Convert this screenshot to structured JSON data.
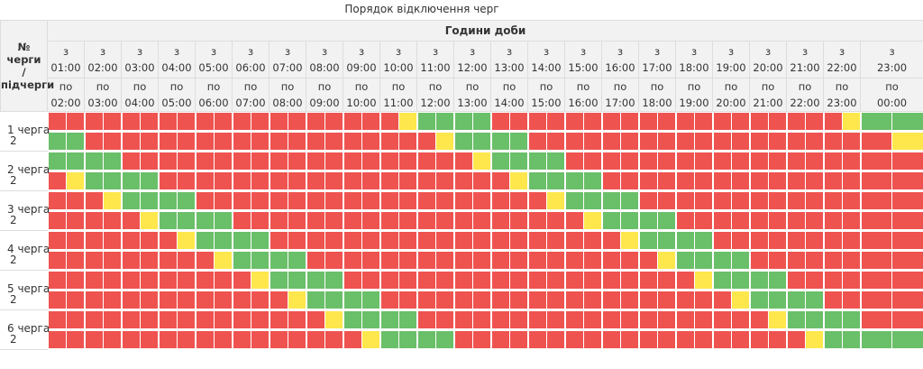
{
  "title": "Порядок відключення черг",
  "header": {
    "queue_label": [
      "№ черги",
      "/",
      "підчерги"
    ],
    "day_hours": "Години доби",
    "from_prefix": "з",
    "to_prefix": "по",
    "from_times": [
      "01:00",
      "02:00",
      "03:00",
      "04:00",
      "05:00",
      "06:00",
      "07:00",
      "08:00",
      "09:00",
      "10:00",
      "11:00",
      "12:00",
      "13:00",
      "14:00",
      "15:00",
      "16:00",
      "17:00",
      "18:00",
      "19:00",
      "20:00",
      "21:00",
      "22:00",
      "23:00"
    ],
    "to_times": [
      "02:00",
      "03:00",
      "04:00",
      "05:00",
      "06:00",
      "07:00",
      "08:00",
      "09:00",
      "10:00",
      "11:00",
      "12:00",
      "13:00",
      "14:00",
      "15:00",
      "16:00",
      "17:00",
      "18:00",
      "19:00",
      "20:00",
      "21:00",
      "22:00",
      "23:00",
      "00:00"
    ]
  },
  "legend_colors": {
    "on": "#6abf69",
    "off": "#ef5350",
    "maybe": "#fde74c"
  },
  "queues": [
    {
      "name": "1 черга",
      "subs": [
        "1",
        "2"
      ]
    },
    {
      "name": "2 черга",
      "subs": [
        "1",
        "2"
      ]
    },
    {
      "name": "3 черга",
      "subs": [
        "1",
        "2"
      ]
    },
    {
      "name": "4 черга",
      "subs": [
        "1",
        "2"
      ]
    },
    {
      "name": "5 черга",
      "subs": [
        "1",
        "2"
      ]
    },
    {
      "name": "6 черга",
      "subs": [
        "1",
        "2"
      ]
    }
  ],
  "grid": [
    "RRRRRRRRRRRRRRRRRRRRRRRRRRRRRRRRRRRRRRRRRRRRRRRRR",
    "RRRRRRRRRRRRRRRRRRRRRRRRRRRRRRRRRRRRRRRRRRRRRRRRR",
    "RRRRRRRRRRRRRRRRRRRRRRRRRRRRRRRRRRRRRRRRRRRRRRRRR",
    "RRRRRRRRRRRRRRRRRRRRRRRRRRRRRRRRRRRRRRRRRRRRRRRRR",
    "RRRRRRRRRRRRRRRRRRRRRRRRRRRRRRRRRRRRRRRRRRRRRRRRR",
    "RRRRRRRRRRRRRRRRRRRRRRRRRRRRRRRRRRRRRRRRRRRRRRRRR",
    "RRRRRRRRRRRRRRRRRRRRRRRRRRRRRRRRRRRRRRRRRRRRRRRRR",
    "RRRRRRRRRRRRRRRRRRRRRRRRRRRRRRRRRRRRRRRRRRRRRRRRR",
    "RRRRRRRRRRRRRRRRRRRRRRRRRRRRRRRRRRRRRRRRRRRRRRRRR",
    "RRRRRRRRRRRRRRRRRRRRRRRRRRRRRRRRRRRRRRRRRRRRRRRRR",
    "RRRRRRRRRRRRRRRRRRRRRRRRRRRRRRRRRRRRRRRRRRRRRRRRR",
    "RRRRRRRRRRRRRRRRRRRRRRRRRRRRRRRRRRRRRRRRRRRRRRRRR"
  ]
}
